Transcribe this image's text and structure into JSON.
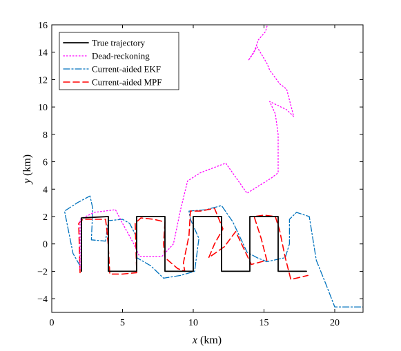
{
  "chart_data": {
    "type": "line",
    "title": "",
    "xlabel": "x (km)",
    "ylabel": "y (km)",
    "xlabel_italic": "x",
    "xlabel_unit": "(km)",
    "ylabel_italic": "y",
    "ylabel_unit": "(km)",
    "xlim": [
      0,
      22
    ],
    "ylim": [
      -5,
      16
    ],
    "xticks": [
      0,
      5,
      10,
      15,
      20
    ],
    "yticks": [
      -4,
      -2,
      0,
      2,
      4,
      6,
      8,
      10,
      12,
      14,
      16
    ],
    "grid": false,
    "legend_position": "top-left",
    "series": [
      {
        "name": "True trajectory",
        "color": "#000000",
        "dash": "solid",
        "points": [
          [
            2.1,
            -2.0
          ],
          [
            2.1,
            1.9
          ],
          [
            4.0,
            2.0
          ],
          [
            4.0,
            -2.0
          ],
          [
            6.0,
            -2.0
          ],
          [
            6.0,
            2.0
          ],
          [
            8.0,
            2.0
          ],
          [
            8.0,
            -2.0
          ],
          [
            10.0,
            -2.0
          ],
          [
            10.0,
            2.0
          ],
          [
            12.0,
            2.0
          ],
          [
            12.0,
            -2.0
          ],
          [
            14.0,
            -2.0
          ],
          [
            14.0,
            2.0
          ],
          [
            16.0,
            2.0
          ],
          [
            16.0,
            -2.0
          ],
          [
            18.0,
            -2.0
          ]
        ]
      },
      {
        "name": "Dead-reckoning",
        "color": "#ff00ff",
        "dash": "dotted",
        "points": [
          [
            2.0,
            -1.8
          ],
          [
            2.0,
            1.8
          ],
          [
            3.0,
            2.3
          ],
          [
            4.5,
            2.5
          ],
          [
            5.0,
            1.5
          ],
          [
            5.8,
            0.0
          ],
          [
            6.2,
            -0.9
          ],
          [
            7.8,
            -0.9
          ],
          [
            8.6,
            0.0
          ],
          [
            9.1,
            2.5
          ],
          [
            9.6,
            4.6
          ],
          [
            10.5,
            5.2
          ],
          [
            12.3,
            5.9
          ],
          [
            13.8,
            3.7
          ],
          [
            15.5,
            4.8
          ],
          [
            16.0,
            5.2
          ],
          [
            16.0,
            8.0
          ],
          [
            15.8,
            9.5
          ],
          [
            15.4,
            10.4
          ],
          [
            16.6,
            9.8
          ],
          [
            17.1,
            9.3
          ],
          [
            16.6,
            11.3
          ],
          [
            16.1,
            11.7
          ],
          [
            15.4,
            12.7
          ],
          [
            15.2,
            13.2
          ],
          [
            14.5,
            14.4
          ],
          [
            13.9,
            13.4
          ],
          [
            14.3,
            14.0
          ],
          [
            14.6,
            14.9
          ],
          [
            15.1,
            15.5
          ],
          [
            15.3,
            16.2
          ]
        ]
      },
      {
        "name": "Current-aided EKF",
        "color": "#0072bd",
        "dash": "dashdot",
        "points": [
          [
            2.0,
            -1.6
          ],
          [
            1.5,
            -0.7
          ],
          [
            0.9,
            2.4
          ],
          [
            1.8,
            3.0
          ],
          [
            2.7,
            3.5
          ],
          [
            2.9,
            2.6
          ],
          [
            2.8,
            0.3
          ],
          [
            3.8,
            0.2
          ],
          [
            4.0,
            1.7
          ],
          [
            5.0,
            1.8
          ],
          [
            5.5,
            1.5
          ],
          [
            6.0,
            0.5
          ],
          [
            6.0,
            -1.0
          ],
          [
            7.0,
            -1.6
          ],
          [
            7.9,
            -2.5
          ],
          [
            9.1,
            -2.3
          ],
          [
            10.1,
            -2.0
          ],
          [
            10.4,
            0.4
          ],
          [
            9.8,
            1.8
          ],
          [
            9.7,
            2.4
          ],
          [
            10.9,
            2.5
          ],
          [
            12.0,
            2.8
          ],
          [
            12.8,
            1.6
          ],
          [
            13.8,
            -0.6
          ],
          [
            14.5,
            -1.0
          ],
          [
            15.2,
            -1.3
          ],
          [
            16.5,
            -1.0
          ],
          [
            16.8,
            0.0
          ],
          [
            16.8,
            1.8
          ],
          [
            17.3,
            2.3
          ],
          [
            18.2,
            2.0
          ],
          [
            18.7,
            -1.2
          ],
          [
            19.4,
            -3.0
          ],
          [
            20.0,
            -4.6
          ],
          [
            22.0,
            -4.6
          ]
        ]
      },
      {
        "name": "Current-aided MPF",
        "color": "#ff0000",
        "dash": "dashed",
        "points": [
          [
            2.0,
            -2.1
          ],
          [
            1.9,
            1.5
          ],
          [
            2.2,
            1.8
          ],
          [
            3.8,
            1.8
          ],
          [
            3.9,
            1.0
          ],
          [
            4.0,
            -0.2
          ],
          [
            4.1,
            -2.2
          ],
          [
            5.0,
            -2.2
          ],
          [
            6.0,
            -2.1
          ],
          [
            5.9,
            1.5
          ],
          [
            6.3,
            1.9
          ],
          [
            7.2,
            1.8
          ],
          [
            8.0,
            1.6
          ],
          [
            7.9,
            0.0
          ],
          [
            8.0,
            -1.0
          ],
          [
            8.9,
            -1.8
          ],
          [
            9.4,
            -2.0
          ],
          [
            9.3,
            -1.4
          ],
          [
            9.7,
            0.6
          ],
          [
            9.8,
            2.4
          ],
          [
            10.5,
            2.4
          ],
          [
            11.5,
            2.6
          ],
          [
            12.1,
            1.1
          ],
          [
            11.5,
            0.0
          ],
          [
            11.1,
            -1.0
          ],
          [
            12.2,
            -0.2
          ],
          [
            13.0,
            0.9
          ],
          [
            13.6,
            -0.4
          ],
          [
            14.1,
            -1.5
          ],
          [
            15.2,
            -1.2
          ],
          [
            14.8,
            0.4
          ],
          [
            14.3,
            2.0
          ],
          [
            15.0,
            2.1
          ],
          [
            15.8,
            2.0
          ],
          [
            16.1,
            1.0
          ],
          [
            16.5,
            -1.0
          ],
          [
            16.9,
            -2.6
          ],
          [
            18.1,
            -2.3
          ]
        ]
      }
    ]
  }
}
